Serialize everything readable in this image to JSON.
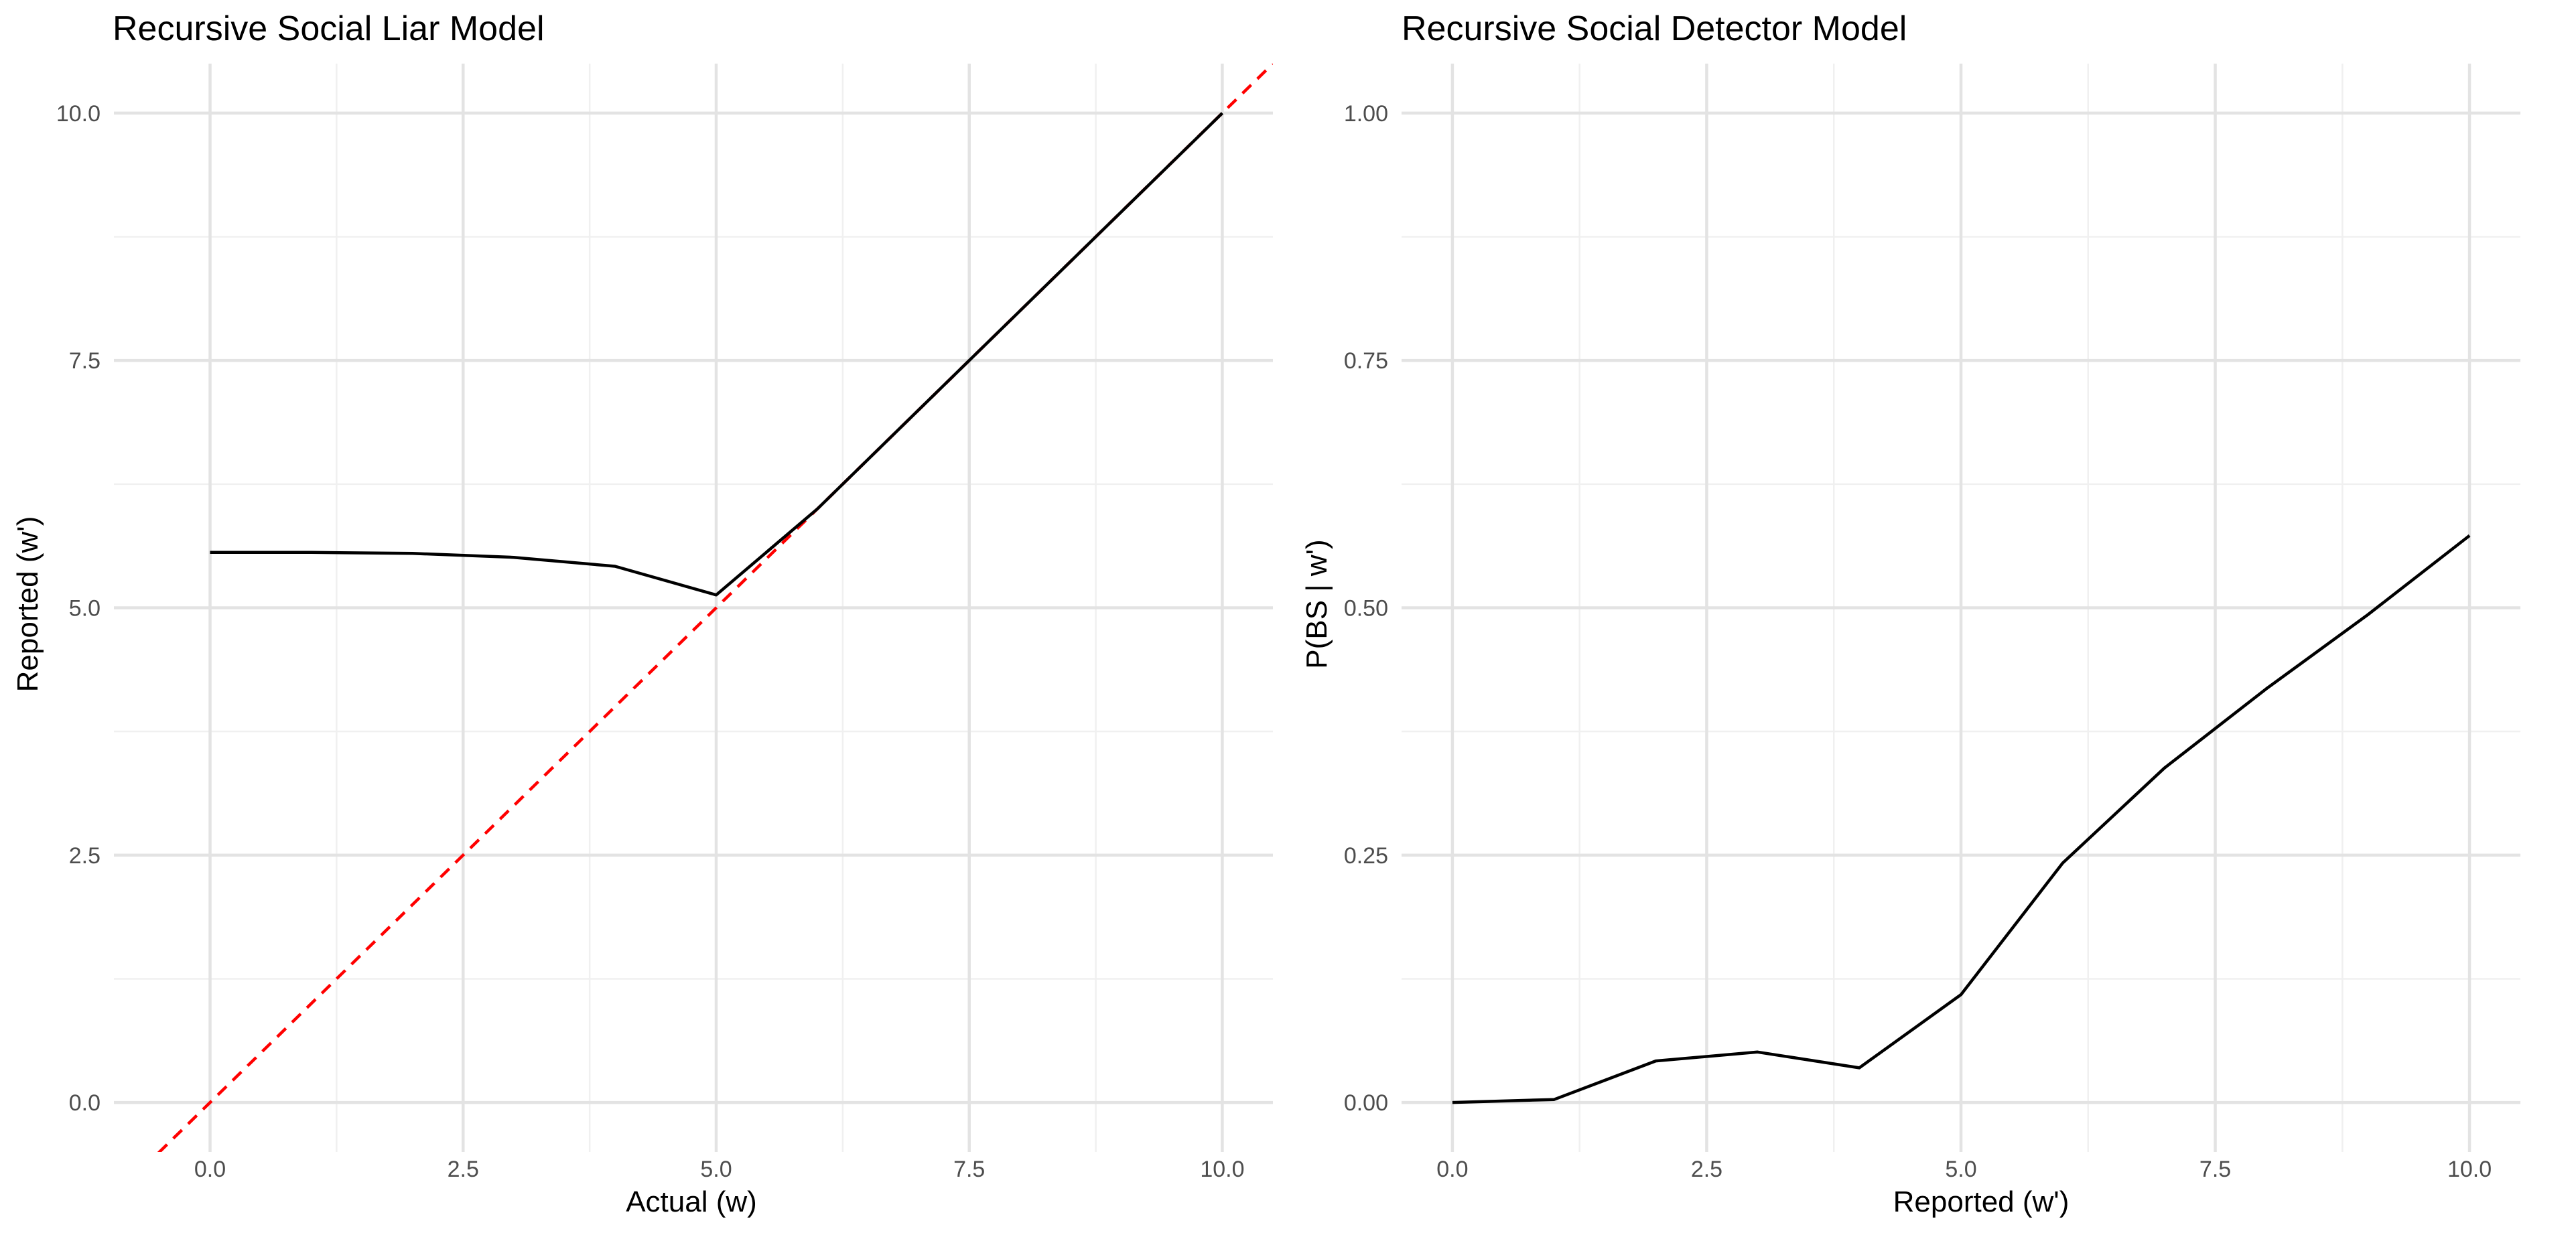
{
  "chart_data": [
    {
      "type": "line",
      "title": "Recursive Social Liar Model",
      "xlabel": "Actual (w)",
      "ylabel": "Reported (w')",
      "xlim": [
        -0.95,
        10.5
      ],
      "ylim": [
        -0.5,
        10.5
      ],
      "x_ticks": [
        0,
        2.5,
        5,
        7.5,
        10
      ],
      "x_tick_labels": [
        "0.0",
        "2.5",
        "5.0",
        "7.5",
        "10.0"
      ],
      "y_ticks": [
        0,
        2.5,
        5,
        7.5,
        10
      ],
      "y_tick_labels": [
        "0.0",
        "2.5",
        "5.0",
        "7.5",
        "10.0"
      ],
      "grid": true,
      "series": [
        {
          "style": "solid",
          "color": "#000000",
          "x": [
            0,
            1,
            2,
            3,
            4,
            5,
            6,
            7,
            8,
            9,
            10
          ],
          "y": [
            5.56,
            5.56,
            5.55,
            5.51,
            5.42,
            5.13,
            6.0,
            7.0,
            8.0,
            9.0,
            10.0
          ]
        }
      ],
      "reference_lines": [
        {
          "type": "diagonal",
          "slope": 1,
          "intercept": 0,
          "style": "dashed",
          "color": "#ff0000"
        }
      ]
    },
    {
      "type": "line",
      "title": "Recursive Social Detector Model",
      "xlabel": "Reported (w')",
      "ylabel": "P(BS | w')",
      "xlim": [
        -0.5,
        10.5
      ],
      "ylim": [
        -0.05,
        1.05
      ],
      "x_ticks": [
        0,
        2.5,
        5,
        7.5,
        10
      ],
      "x_tick_labels": [
        "0.0",
        "2.5",
        "5.0",
        "7.5",
        "10.0"
      ],
      "y_ticks": [
        0,
        0.25,
        0.5,
        0.75,
        1.0
      ],
      "y_tick_labels": [
        "0.00",
        "0.25",
        "0.50",
        "0.75",
        "1.00"
      ],
      "grid": true,
      "series": [
        {
          "style": "solid",
          "color": "#000000",
          "x": [
            0,
            1,
            2,
            3,
            4,
            5,
            6,
            7,
            8,
            9,
            10
          ],
          "y": [
            0.0,
            0.003,
            0.042,
            0.051,
            0.035,
            0.109,
            0.242,
            0.338,
            0.418,
            0.493,
            0.573
          ]
        }
      ]
    }
  ]
}
